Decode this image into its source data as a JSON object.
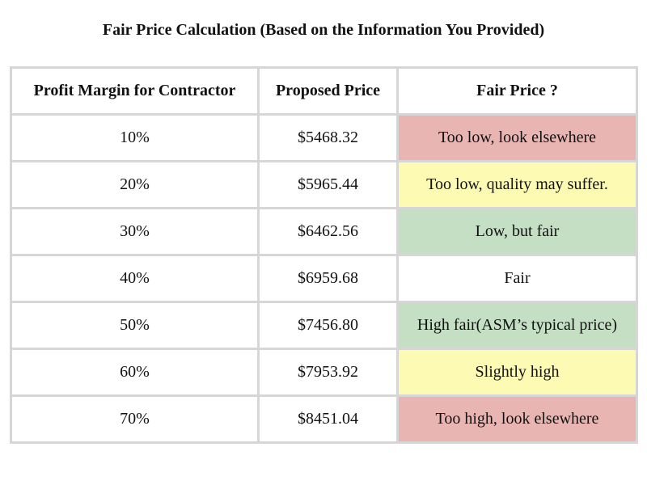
{
  "title": "Fair Price Calculation (Based on the Information You Provided)",
  "table": {
    "header": [
      "Profit Margin for Contractor",
      "Proposed Price",
      "Fair Price ?"
    ],
    "rows": [
      [
        "10%",
        "$5468.32",
        "Too low, look elsewhere"
      ],
      [
        "20%",
        "$5965.44",
        "Too low, quality may suffer."
      ],
      [
        "30%",
        "$6462.56",
        "Low, but fair"
      ],
      [
        "40%",
        "$6959.68",
        "Fair"
      ],
      [
        "50%",
        "$7456.80",
        "High fair(ASM’s typical price)"
      ],
      [
        "60%",
        "$7953.92",
        "Slightly high"
      ],
      [
        "70%",
        "$8451.04",
        "Too high, look elsewhere"
      ]
    ]
  }
}
